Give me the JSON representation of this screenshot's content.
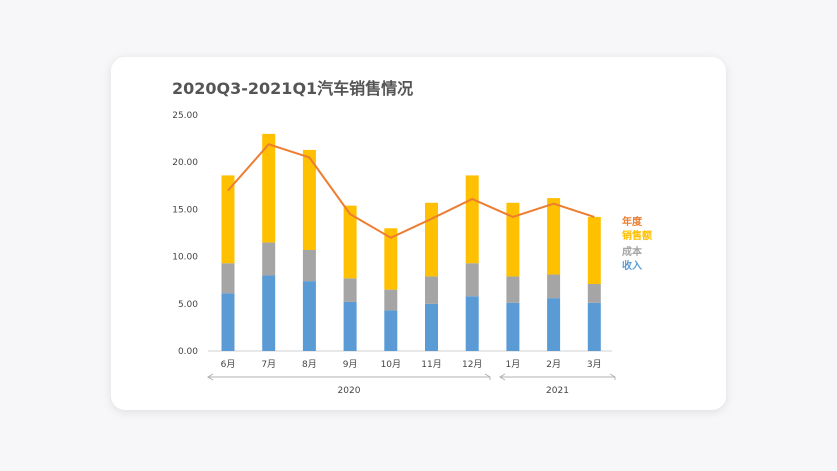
{
  "chart_data": {
    "type": "bar",
    "stacked": true,
    "title": "2020Q3-2021Q1汽车销售情况",
    "categories": [
      "6月",
      "7月",
      "8月",
      "9月",
      "10月",
      "11月",
      "12月",
      "1月",
      "2月",
      "3月"
    ],
    "groups": [
      {
        "label": "2020",
        "span": [
          "6月",
          "12月"
        ]
      },
      {
        "label": "2021",
        "span": [
          "1月",
          "3月"
        ]
      }
    ],
    "series": [
      {
        "name": "收入",
        "kind": "bar",
        "color": "#5b9bd5",
        "values": [
          6.1,
          8.0,
          7.4,
          5.2,
          4.3,
          5.0,
          5.8,
          5.1,
          5.6,
          5.1
        ]
      },
      {
        "name": "成本",
        "kind": "bar",
        "color": "#a5a5a5",
        "values": [
          3.2,
          3.5,
          3.3,
          2.5,
          2.2,
          2.9,
          3.5,
          2.8,
          2.5,
          2.0
        ]
      },
      {
        "name": "销售额",
        "kind": "bar",
        "color": "#ffc000",
        "values": [
          9.3,
          11.5,
          10.6,
          7.7,
          6.5,
          7.8,
          9.3,
          7.8,
          8.1,
          7.1
        ]
      },
      {
        "name": "年度",
        "kind": "line",
        "color": "#ed7d31",
        "values": [
          17.0,
          21.9,
          20.5,
          14.5,
          12.0,
          14.0,
          16.1,
          14.2,
          15.6,
          14.2
        ]
      }
    ],
    "ylim": [
      0,
      25
    ],
    "yticks": [
      "0.00",
      "5.00",
      "10.00",
      "15.00",
      "20.00",
      "25.00"
    ],
    "grid": false,
    "legend_position": "right"
  }
}
